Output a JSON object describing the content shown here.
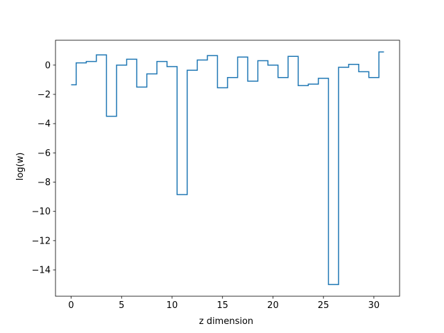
{
  "chart_data": {
    "type": "line",
    "drawstyle": "steps-mid",
    "title": "",
    "xlabel": "z dimension",
    "ylabel": "log(w)",
    "xlim": [
      -1.55,
      32.55
    ],
    "ylim": [
      -15.8,
      1.7
    ],
    "xticks": [
      0,
      5,
      10,
      15,
      20,
      25,
      30
    ],
    "yticks": [
      0,
      -2,
      -4,
      -6,
      -8,
      -10,
      -12,
      -14
    ],
    "grid": false,
    "color": "#1f77b4",
    "series": [
      {
        "x": [
          0,
          1,
          2,
          3,
          4,
          5,
          6,
          7,
          8,
          9,
          10,
          11,
          12,
          13,
          14,
          15,
          16,
          17,
          18,
          19,
          20,
          21,
          22,
          23,
          24,
          25,
          26,
          27,
          28,
          29,
          30,
          31
        ],
        "y": [
          -1.35,
          0.15,
          0.25,
          0.7,
          -3.5,
          0.0,
          0.4,
          -1.5,
          -0.6,
          0.25,
          -0.1,
          -8.85,
          -0.35,
          0.35,
          0.65,
          -1.55,
          -0.85,
          0.55,
          -1.1,
          0.3,
          0.0,
          -0.85,
          0.6,
          -1.4,
          -1.3,
          -0.9,
          -15.0,
          -0.15,
          0.05,
          -0.45,
          -0.85,
          0.9
        ]
      }
    ]
  }
}
